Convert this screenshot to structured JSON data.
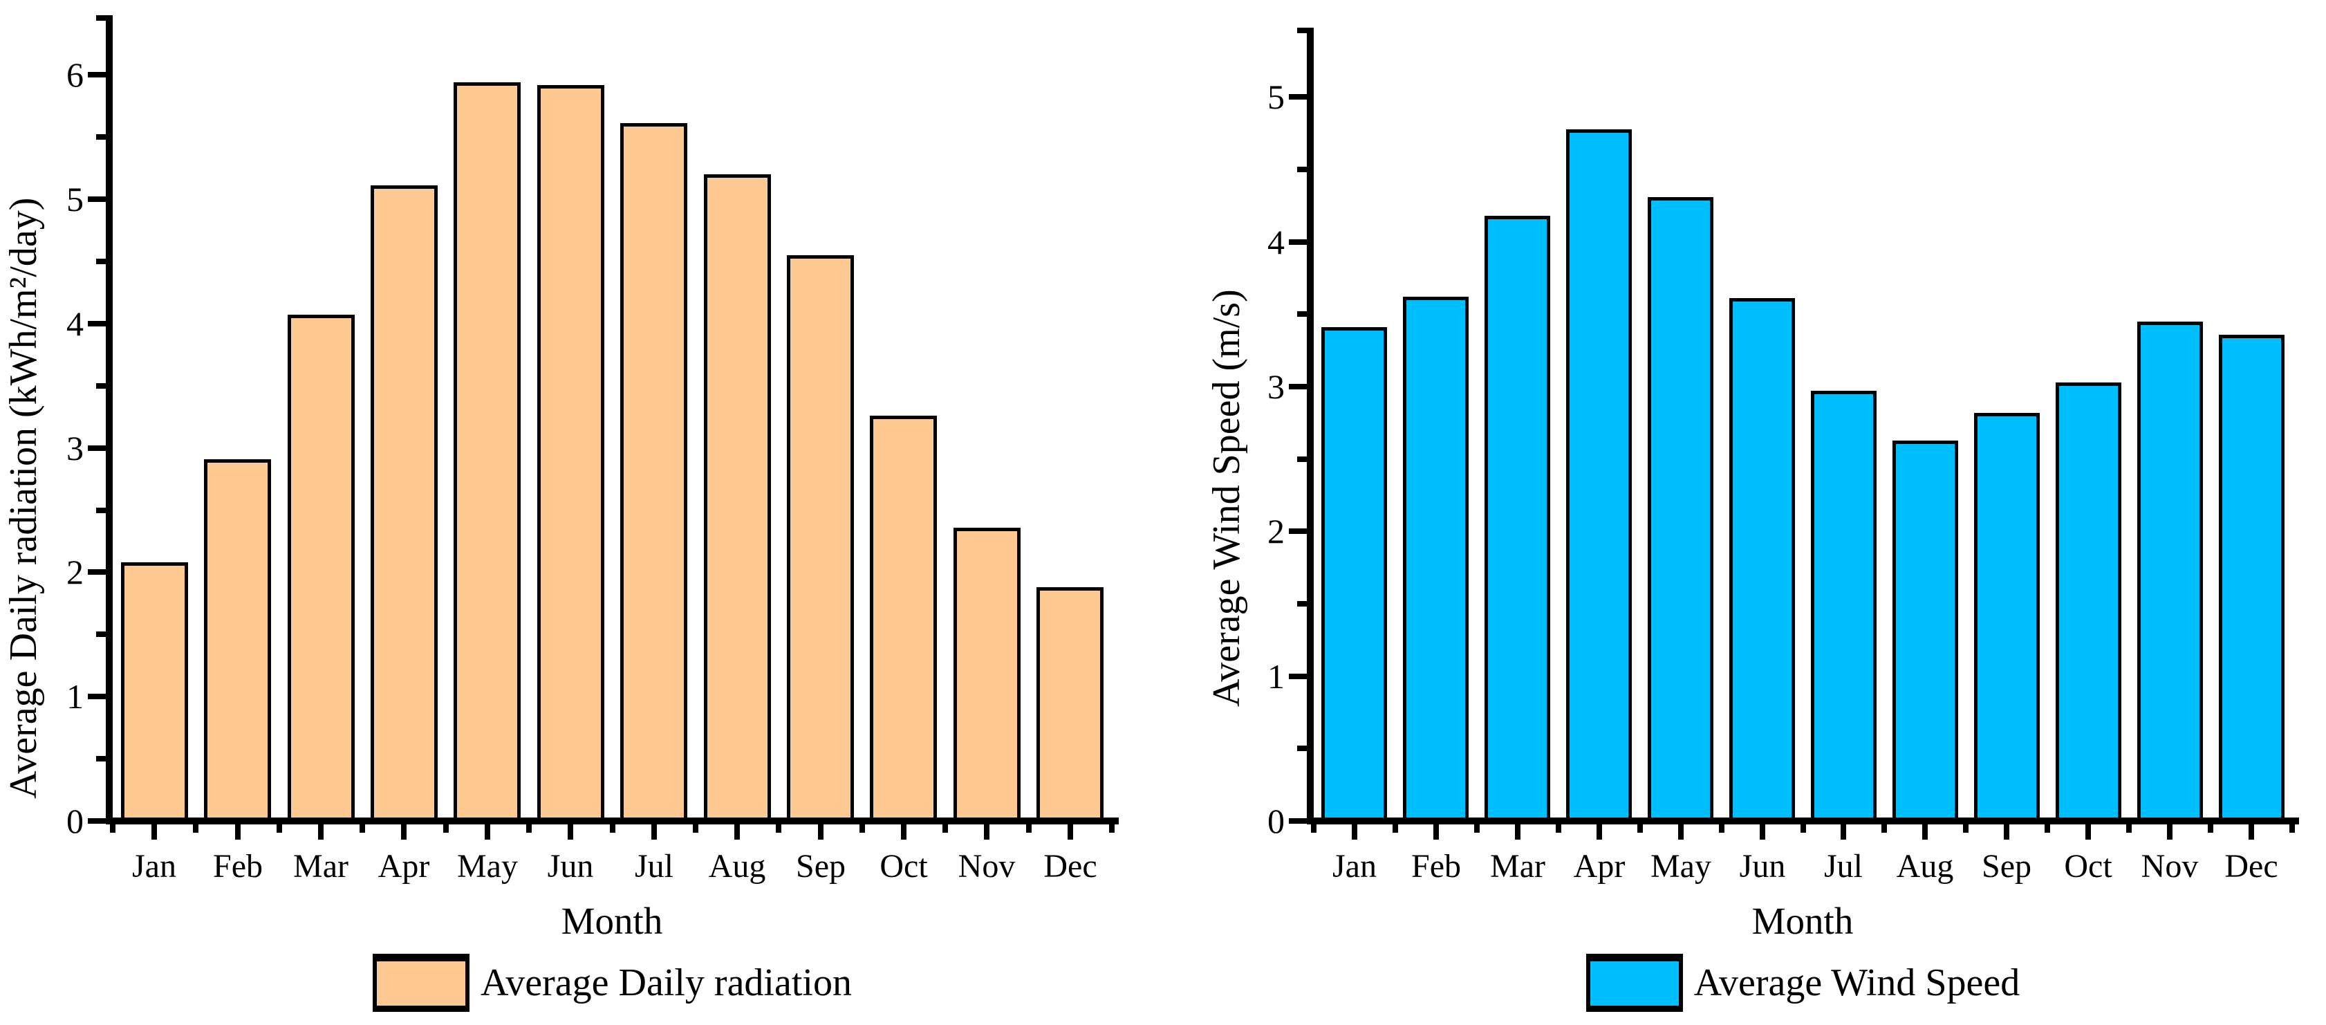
{
  "figure": {
    "background": "#FFFFFF",
    "description": "Two side-by-side monthly bar charts"
  },
  "chart_data": [
    {
      "type": "bar",
      "title": "",
      "xlabel": "Month",
      "ylabel": "Average Daily radiation (kWh/m²/day)",
      "legend": "Average Daily radiation",
      "legend_position": "bottom",
      "bar_color": "#FFCA91",
      "bar_edge_color": "#000000",
      "axis_color": "#000000",
      "grid": false,
      "categories": [
        "Jan",
        "Feb",
        "Mar",
        "Apr",
        "May",
        "Jun",
        "Jul",
        "Aug",
        "Sep",
        "Oct",
        "Nov",
        "Dec"
      ],
      "values": [
        2.08,
        2.91,
        4.07,
        5.11,
        5.94,
        5.92,
        5.61,
        5.2,
        4.55,
        3.26,
        2.36,
        1.88
      ],
      "ylim": [
        0,
        6.48
      ],
      "y_major_ticks": [
        0,
        1,
        2,
        3,
        4,
        5,
        6
      ],
      "y_minor_step": 0.5
    },
    {
      "type": "bar",
      "title": "",
      "xlabel": "Month",
      "ylabel": "Average Wind Speed (m/s)",
      "legend": "Average Wind Speed",
      "legend_position": "bottom",
      "bar_color": "#00BFFF",
      "bar_edge_color": "#000000",
      "axis_color": "#000000",
      "grid": false,
      "categories": [
        "Jan",
        "Feb",
        "Mar",
        "Apr",
        "May",
        "Jun",
        "Jul",
        "Aug",
        "Sep",
        "Oct",
        "Nov",
        "Dec"
      ],
      "values": [
        3.41,
        3.62,
        4.18,
        4.78,
        4.31,
        3.61,
        2.97,
        2.63,
        2.82,
        3.03,
        3.45,
        3.36
      ],
      "ylim": [
        0,
        5.48
      ],
      "y_major_ticks": [
        0,
        1,
        2,
        3,
        4,
        5
      ],
      "y_minor_step": 0.5
    }
  ]
}
